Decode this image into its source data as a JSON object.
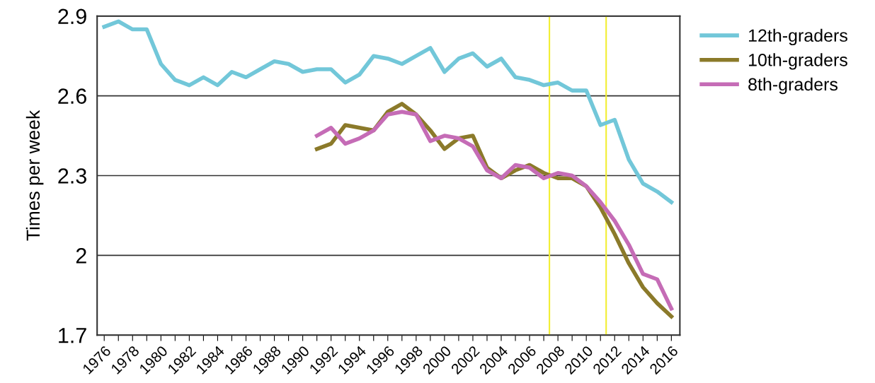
{
  "chart_data": {
    "type": "line",
    "ylabel": "Times per week",
    "x": [
      1976,
      1977,
      1978,
      1979,
      1980,
      1981,
      1982,
      1983,
      1984,
      1985,
      1986,
      1987,
      1988,
      1989,
      1990,
      1991,
      1992,
      1993,
      1994,
      1995,
      1996,
      1997,
      1998,
      1999,
      2000,
      2001,
      2002,
      2003,
      2004,
      2005,
      2006,
      2007,
      2008,
      2009,
      2010,
      2011,
      2012,
      2013,
      2014,
      2015,
      2016
    ],
    "series": [
      {
        "name": "12th-graders",
        "color": "#72c7d9",
        "values": [
          2.86,
          2.88,
          2.85,
          2.85,
          2.72,
          2.66,
          2.64,
          2.67,
          2.64,
          2.69,
          2.67,
          2.7,
          2.73,
          2.72,
          2.69,
          2.7,
          2.7,
          2.65,
          2.68,
          2.75,
          2.74,
          2.72,
          2.75,
          2.78,
          2.69,
          2.74,
          2.76,
          2.71,
          2.74,
          2.67,
          2.66,
          2.64,
          2.65,
          2.62,
          2.62,
          2.49,
          2.51,
          2.36,
          2.27,
          2.24,
          2.2
        ]
      },
      {
        "name": "10th-graders",
        "color": "#8b7a2a",
        "values": [
          null,
          null,
          null,
          null,
          null,
          null,
          null,
          null,
          null,
          null,
          null,
          null,
          null,
          null,
          null,
          2.4,
          2.42,
          2.49,
          2.48,
          2.47,
          2.54,
          2.57,
          2.53,
          2.47,
          2.4,
          2.44,
          2.45,
          2.33,
          2.29,
          2.32,
          2.34,
          2.31,
          2.29,
          2.29,
          2.26,
          2.18,
          2.08,
          1.97,
          1.88,
          1.82,
          1.77
        ]
      },
      {
        "name": "8th-graders",
        "color": "#c56cb6",
        "values": [
          null,
          null,
          null,
          null,
          null,
          null,
          null,
          null,
          null,
          null,
          null,
          null,
          null,
          null,
          null,
          2.45,
          2.48,
          2.42,
          2.44,
          2.47,
          2.53,
          2.54,
          2.53,
          2.43,
          2.45,
          2.44,
          2.41,
          2.32,
          2.29,
          2.34,
          2.33,
          2.29,
          2.31,
          2.3,
          2.26,
          2.2,
          2.13,
          2.04,
          1.93,
          1.91,
          1.8
        ]
      }
    ],
    "xlim": [
      1975.5,
      2016.6
    ],
    "xticks": [
      1976,
      {
        "value": 1977,
        "label": null
      },
      1978,
      {
        "value": 1979,
        "label": null
      },
      1980,
      {
        "value": 1981,
        "label": null
      },
      1982,
      {
        "value": 1983,
        "label": null
      },
      1984,
      {
        "value": 1985,
        "label": null
      },
      1986,
      {
        "value": 1987,
        "label": null
      },
      1988,
      {
        "value": 1989,
        "label": null
      },
      1990,
      {
        "value": 1991,
        "label": null
      },
      1992,
      {
        "value": 1993,
        "label": null
      },
      1994,
      {
        "value": 1995,
        "label": null
      },
      1996,
      {
        "value": 1997,
        "label": null
      },
      1998,
      {
        "value": 1999,
        "label": null
      },
      2000,
      {
        "value": 2001,
        "label": null
      },
      2002,
      {
        "value": 2003,
        "label": null
      },
      2004,
      {
        "value": 2005,
        "label": null
      },
      2006,
      {
        "value": 2007,
        "label": null
      },
      2008,
      {
        "value": 2009,
        "label": null
      },
      2010,
      {
        "value": 2011,
        "label": null
      },
      2012,
      {
        "value": 2013,
        "label": null
      },
      2014,
      {
        "value": 2015,
        "label": null
      },
      2016
    ],
    "ylim": [
      1.7,
      2.9
    ],
    "yticks": [
      1.7,
      {
        "value": 2.0,
        "label": "2"
      },
      2.3,
      2.6,
      2.9
    ],
    "ref_lines": [
      {
        "axis": "x",
        "value": 2007.4,
        "color": "#f2ee30"
      },
      {
        "axis": "x",
        "value": 2011.4,
        "color": "#f2ee30"
      }
    ],
    "grid": "y",
    "legend": "top right",
    "marker": "none",
    "line_style": "solid"
  }
}
